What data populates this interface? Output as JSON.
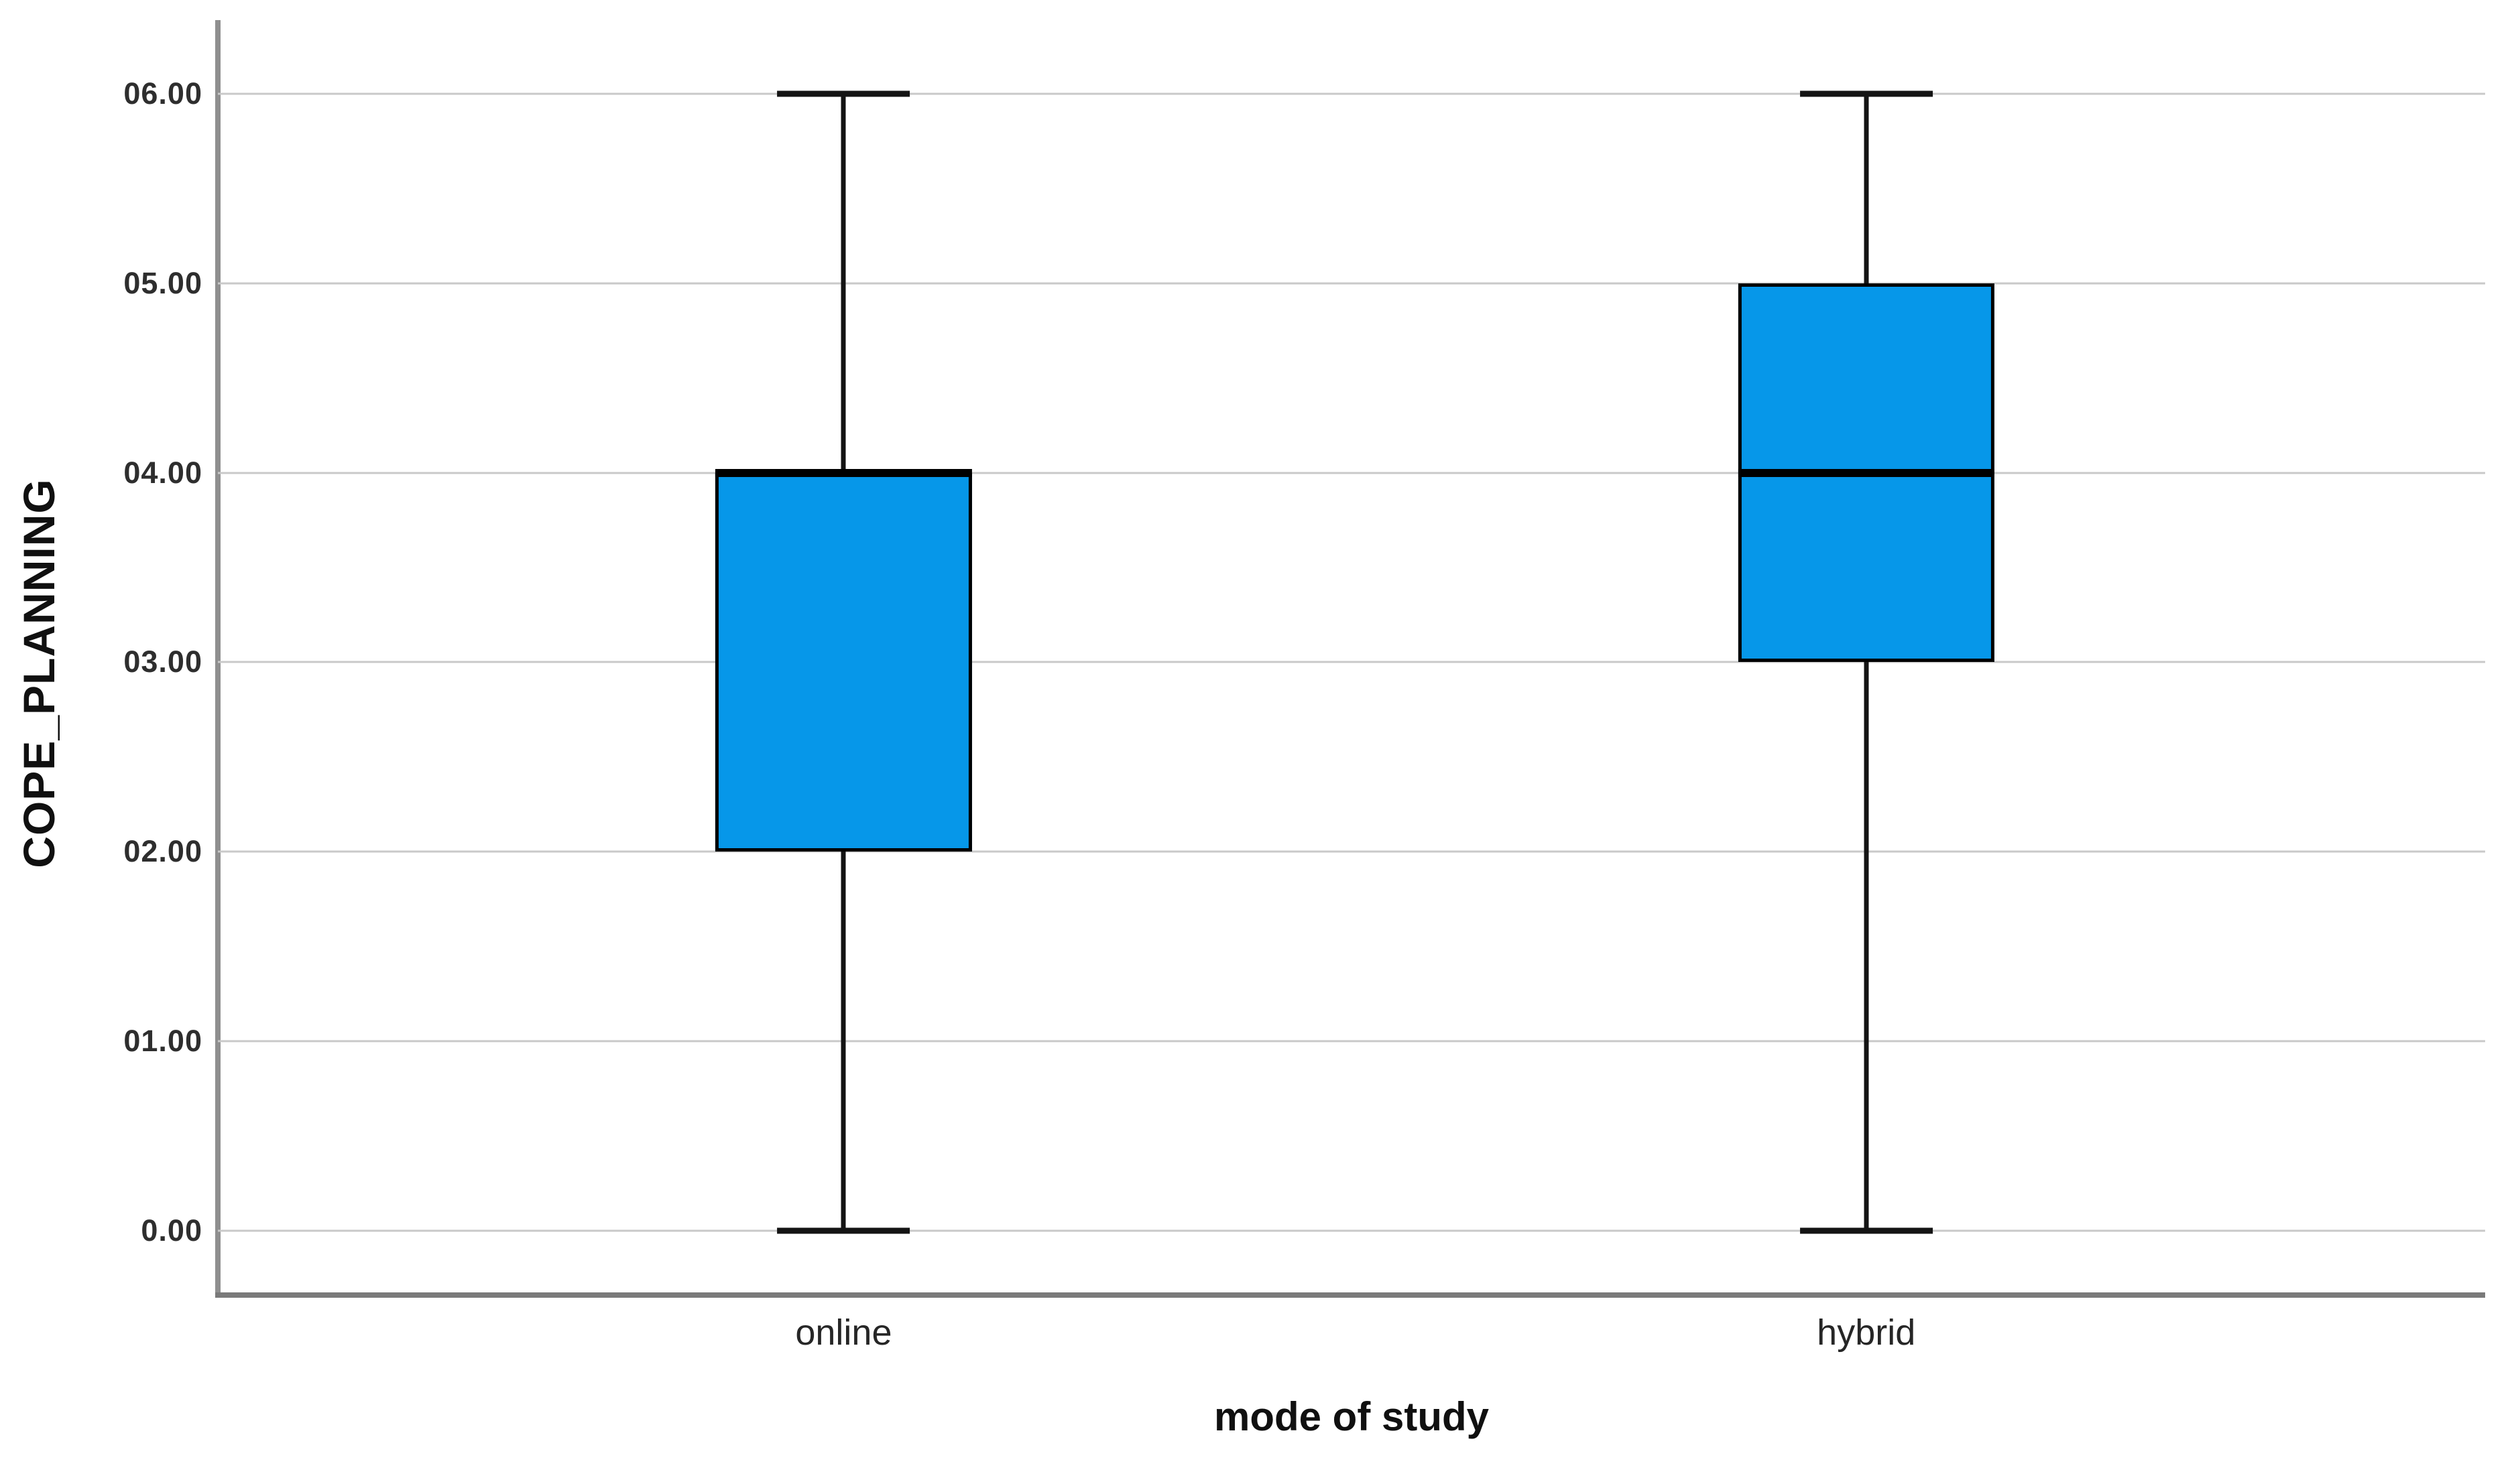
{
  "chart_data": {
    "type": "boxplot",
    "title": "",
    "xlabel": "mode of study",
    "ylabel": "COPE_PLANNING",
    "categories": [
      "online",
      "hybrid"
    ],
    "boxes": [
      {
        "category": "online",
        "whisker_min": 0.0,
        "q1": 2.0,
        "median": 4.0,
        "q3": 4.0,
        "whisker_max": 6.0
      },
      {
        "category": "hybrid",
        "whisker_min": 0.0,
        "q1": 3.0,
        "median": 4.0,
        "q3": 5.0,
        "whisker_max": 6.0
      }
    ],
    "y_axis": {
      "ticks": [
        {
          "value": 6,
          "label": "06.00"
        },
        {
          "value": 5,
          "label": "05.00"
        },
        {
          "value": 4,
          "label": "04.00"
        },
        {
          "value": 3,
          "label": "03.00"
        },
        {
          "value": 2,
          "label": "02.00"
        },
        {
          "value": 1,
          "label": "01.00"
        },
        {
          "value": 0,
          "label": "0.00"
        }
      ],
      "range": [
        -0.33,
        6.39
      ]
    },
    "x_axis": {
      "tick_labels": [
        "online",
        "hybrid"
      ]
    },
    "grid": "horizontal",
    "legend": "none",
    "colors": {
      "box_fill": "#0697E9",
      "box_border": "#000000",
      "whisker": "#141414",
      "gridline": "#c9c9c9",
      "axis_line_y": "#8f8f8f",
      "axis_line_x": "#7a7a7a",
      "text": "#262626"
    },
    "layout": {
      "box_centers_pct": [
        27.6,
        72.7
      ],
      "box_width_pct": 11.3,
      "cap_width_pct": 5.85,
      "legend_position": "none"
    }
  }
}
